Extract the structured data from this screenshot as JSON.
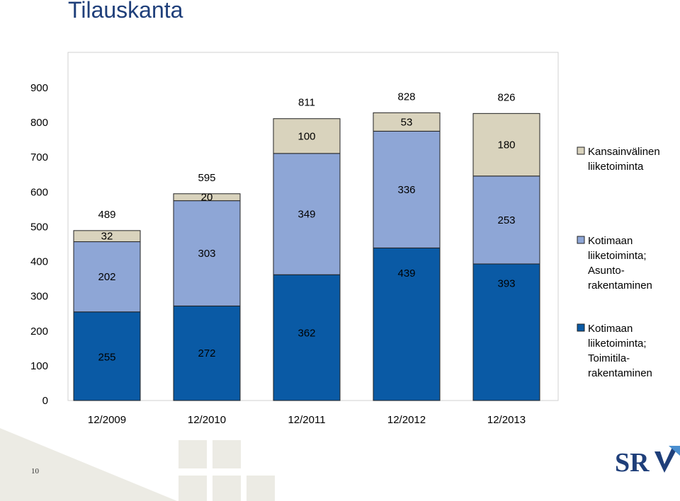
{
  "title": "Tilauskanta",
  "page_number": "10",
  "logo_text": "SRV",
  "colors": {
    "dark_blue": "#0a5aa5",
    "light_blue": "#8ea6d6",
    "beige": "#d9d3bd",
    "decor": "#ecebe4",
    "title": "#1f3f7a"
  },
  "chart_data": {
    "type": "bar",
    "stacked": true,
    "categories": [
      "12/2009",
      "12/2010",
      "12/2011",
      "12/2012",
      "12/2013"
    ],
    "ylim": [
      0,
      900
    ],
    "yticks": [
      0,
      100,
      200,
      300,
      400,
      500,
      600,
      700,
      800,
      900
    ],
    "grid": false,
    "legend_position": "right",
    "series": [
      {
        "name": "Kotimaan liiketoiminta; Toimitila-rakentaminen",
        "legend_lines": [
          "Kotimaan",
          "liiketoiminta;",
          "Toimitila-",
          "rakentaminen"
        ],
        "color": "#0a5aa5",
        "values": [
          255,
          272,
          362,
          439,
          393
        ]
      },
      {
        "name": "Kotimaan liiketoiminta; Asunto-rakentaminen",
        "legend_lines": [
          "Kotimaan",
          "liiketoiminta;",
          "Asunto-",
          "rakentaminen"
        ],
        "color": "#8ea6d6",
        "values": [
          202,
          303,
          349,
          336,
          253
        ]
      },
      {
        "name": "Kansainvälinen liiketoiminta",
        "legend_lines": [
          "Kansainvälinen",
          "liiketoiminta"
        ],
        "color": "#d9d3bd",
        "values": [
          32,
          20,
          100,
          53,
          180
        ]
      }
    ],
    "totals": [
      489,
      595,
      811,
      828,
      826
    ]
  }
}
